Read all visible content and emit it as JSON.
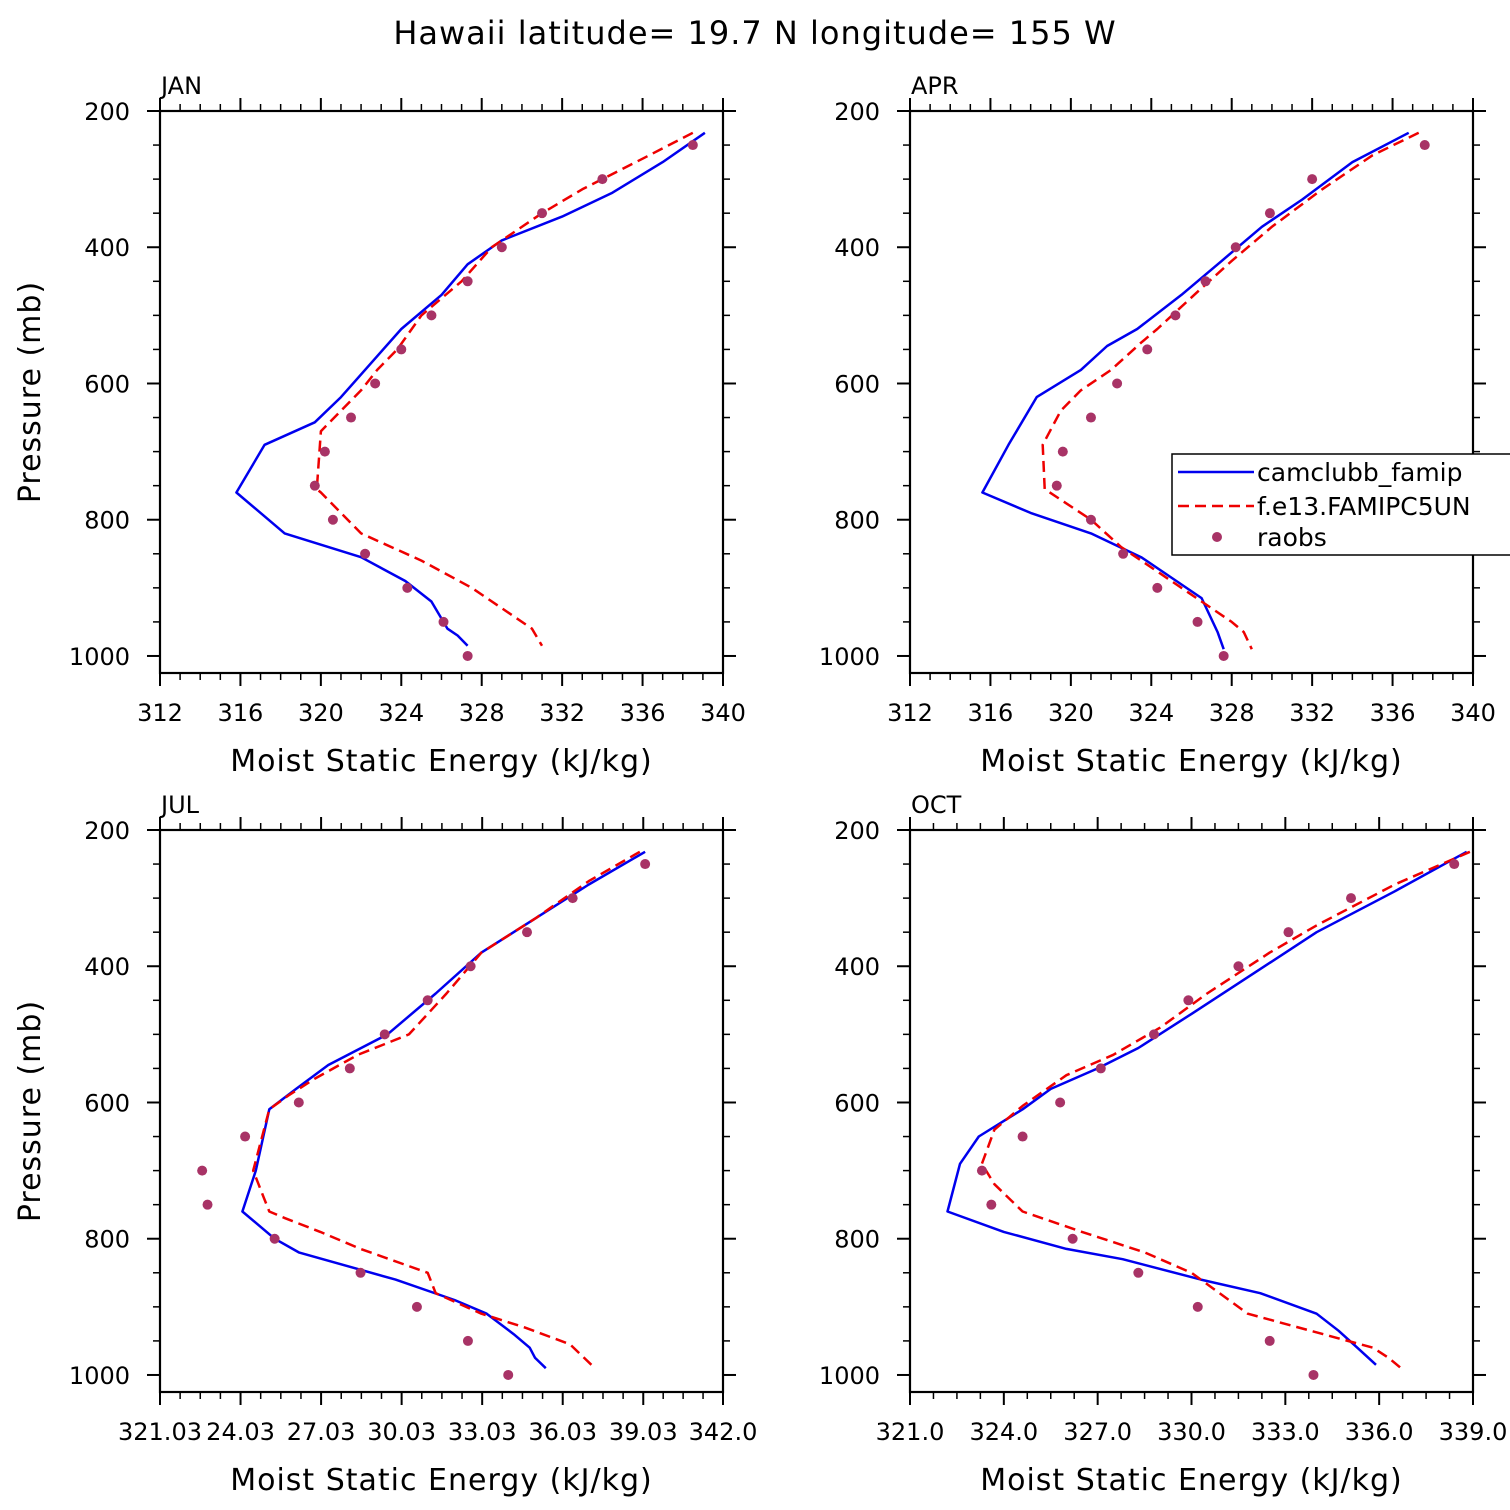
{
  "title": "Hawaii  latitude= 19.7 N longitude= 155 W",
  "colors": {
    "model1": "#0000ee",
    "model2": "#ee0000",
    "obs": "#a83366"
  },
  "legend": {
    "entries": [
      "camclubb_famip",
      "f.e13.FAMIPC5UN",
      "raobs"
    ]
  },
  "chart_data": [
    {
      "type": "line",
      "title": "JAN",
      "xlabel": "Moist Static Energy (kJ/kg)",
      "ylabel": "Pressure (mb)",
      "xlim": [
        312,
        340
      ],
      "ylim": [
        1025,
        200
      ],
      "xticks": [
        312,
        316,
        320,
        324,
        328,
        332,
        336,
        340
      ],
      "xtick_labels": [
        "312",
        "316",
        "320",
        "324",
        "328",
        "332",
        "336",
        "340"
      ],
      "yticks": [
        200,
        400,
        600,
        800,
        1000
      ],
      "ytick_labels": [
        "200",
        "400",
        "600",
        "800",
        "1000"
      ],
      "series": [
        {
          "name": "camclubb_famip",
          "style": "solid",
          "x": [
            339.1,
            337,
            334.5,
            332,
            329,
            327.3,
            326,
            324,
            322.8,
            321,
            319.7,
            317.2,
            315.8,
            318.2,
            322,
            324.2,
            325.5,
            326.3,
            326.8,
            327.3
          ],
          "y": [
            232,
            275,
            320,
            355,
            390,
            425,
            470,
            520,
            560,
            620,
            657,
            690,
            760,
            820,
            855,
            890,
            920,
            960,
            970,
            985
          ]
        },
        {
          "name": "f.e13.FAMIPC5UN",
          "style": "dashed",
          "x": [
            338.5,
            336,
            333,
            331,
            328.5,
            327,
            325,
            323.8,
            322.8,
            322,
            320,
            319.8,
            320,
            322,
            325,
            327.5,
            330.5,
            331
          ],
          "y": [
            232,
            270,
            315,
            350,
            400,
            450,
            500,
            550,
            580,
            610,
            670,
            755,
            760,
            820,
            860,
            900,
            960,
            985
          ]
        },
        {
          "name": "raobs",
          "style": "points",
          "x": [
            338.5,
            334,
            331,
            329,
            327.3,
            325.5,
            324,
            322.7,
            321.5,
            320.2,
            319.7,
            320.6,
            322.2,
            324.3,
            326.1,
            327.3
          ],
          "y": [
            250,
            300,
            350,
            400,
            450,
            500,
            550,
            600,
            650,
            700,
            750,
            800,
            850,
            900,
            950,
            1000
          ]
        }
      ]
    },
    {
      "type": "line",
      "title": "APR",
      "xlabel": "Moist Static Energy (kJ/kg)",
      "ylabel": "",
      "xlim": [
        312,
        340
      ],
      "ylim": [
        1025,
        200
      ],
      "xticks": [
        312,
        316,
        320,
        324,
        328,
        332,
        336,
        340
      ],
      "xtick_labels": [
        "312",
        "316",
        "320",
        "324",
        "328",
        "332",
        "336",
        "340"
      ],
      "yticks": [
        200,
        400,
        600,
        800,
        1000
      ],
      "ytick_labels": [
        "200",
        "400",
        "600",
        "800",
        "1000"
      ],
      "series": [
        {
          "name": "camclubb_famip",
          "style": "solid",
          "x": [
            336.8,
            334,
            331.5,
            329.5,
            327.5,
            325.5,
            323.3,
            321.8,
            320.5,
            318.3,
            316.9,
            315.6,
            318,
            321,
            323.5,
            325,
            326.5,
            327.3,
            327.6
          ],
          "y": [
            232,
            275,
            330,
            370,
            420,
            470,
            520,
            545,
            580,
            620,
            690,
            760,
            790,
            820,
            855,
            885,
            915,
            965,
            990
          ]
        },
        {
          "name": "f.e13.FAMIPC5UN",
          "style": "dashed",
          "x": [
            337.3,
            335,
            332.5,
            330,
            328,
            326.5,
            324.3,
            323.5,
            322,
            320.5,
            319.5,
            318.6,
            318.7,
            321,
            322.5,
            324.5,
            326.5,
            328,
            328.6,
            329
          ],
          "y": [
            232,
            265,
            315,
            370,
            420,
            460,
            520,
            540,
            580,
            610,
            640,
            690,
            755,
            800,
            840,
            880,
            920,
            950,
            965,
            990
          ]
        },
        {
          "name": "raobs",
          "style": "points",
          "x": [
            337.6,
            332,
            329.9,
            328.2,
            326.7,
            325.2,
            323.8,
            322.3,
            321,
            319.6,
            319.3,
            321,
            322.6,
            324.3,
            326.3,
            327.6
          ],
          "y": [
            250,
            300,
            350,
            400,
            450,
            500,
            550,
            600,
            650,
            700,
            750,
            800,
            850,
            900,
            950,
            1000
          ]
        }
      ]
    },
    {
      "type": "line",
      "title": "JUL",
      "xlabel": "Moist Static Energy (kJ/kg)",
      "ylabel": "Pressure (mb)",
      "xlim": [
        321.03,
        342.0
      ],
      "ylim": [
        1025,
        200
      ],
      "xticks": [
        321.03,
        324.03,
        327.03,
        330.03,
        333.03,
        336.03,
        339.03,
        342.0
      ],
      "xtick_labels": [
        "321.03",
        "24.03",
        "27.03",
        "30.03",
        "33.03",
        "36.03",
        "39.03",
        "342.0"
      ],
      "yticks": [
        200,
        400,
        600,
        800,
        1000
      ],
      "ytick_labels": [
        "200",
        "400",
        "600",
        "800",
        "1000"
      ],
      "series": [
        {
          "name": "camclubb_famip",
          "style": "solid",
          "x": [
            339.1,
            337,
            335,
            333,
            331.3,
            329.5,
            327.3,
            326.1,
            325.1,
            324.6,
            324.1,
            325.3,
            326.2,
            329.8,
            332,
            333.2,
            334.2,
            334.8,
            335,
            335.4
          ],
          "y": [
            232,
            280,
            330,
            380,
            440,
            500,
            545,
            580,
            610,
            700,
            760,
            800,
            820,
            860,
            890,
            910,
            940,
            960,
            975,
            990
          ]
        },
        {
          "name": "f.e13.FAMIPC5UN",
          "style": "dashed",
          "x": [
            338.9,
            337,
            335,
            333,
            331.7,
            330.3,
            328.4,
            326.8,
            325.8,
            325.1,
            324.5,
            324.9,
            325.1,
            325.7,
            327,
            328.5,
            331,
            331.3,
            333,
            334.6,
            336.3,
            337.1
          ],
          "y": [
            232,
            275,
            330,
            380,
            440,
            500,
            530,
            565,
            590,
            610,
            700,
            740,
            760,
            770,
            790,
            815,
            850,
            880,
            910,
            930,
            955,
            985
          ]
        },
        {
          "name": "raobs",
          "style": "points",
          "x": [
            339.1,
            336.4,
            334.7,
            332.6,
            331,
            329.4,
            328.1,
            326.2,
            324.2,
            322.6,
            322.8,
            325.3,
            328.5,
            330.6,
            332.5,
            334
          ],
          "y": [
            250,
            300,
            350,
            400,
            450,
            500,
            550,
            600,
            650,
            700,
            750,
            800,
            850,
            900,
            950,
            1000
          ]
        }
      ]
    },
    {
      "type": "line",
      "title": "OCT",
      "xlabel": "Moist Static Energy (kJ/kg)",
      "ylabel": "",
      "xlim": [
        321.0,
        339.0
      ],
      "ylim": [
        1025,
        200
      ],
      "xticks": [
        321,
        324,
        327,
        330,
        333,
        336,
        339
      ],
      "xtick_labels": [
        "321.0",
        "324.0",
        "327.0",
        "330.0",
        "333.0",
        "336.0",
        "339.0"
      ],
      "yticks": [
        200,
        400,
        600,
        800,
        1000
      ],
      "ytick_labels": [
        "200",
        "400",
        "600",
        "800",
        "1000"
      ],
      "series": [
        {
          "name": "camclubb_famip",
          "style": "solid",
          "x": [
            338.8,
            336.5,
            334,
            332,
            330,
            328.3,
            327,
            325.5,
            324.6,
            323.2,
            322.6,
            322.2,
            324,
            326,
            327.8,
            330.3,
            332.2,
            334,
            334.7,
            335.3,
            335.9
          ],
          "y": [
            232,
            290,
            350,
            410,
            470,
            520,
            550,
            580,
            610,
            650,
            690,
            760,
            790,
            815,
            830,
            860,
            880,
            910,
            935,
            960,
            985
          ]
        },
        {
          "name": "f.e13.FAMIPC5UN",
          "style": "dashed",
          "x": [
            338.9,
            336.5,
            334,
            332.5,
            330.5,
            329,
            327.5,
            326,
            324.6,
            323.7,
            323.3,
            323.7,
            324.6,
            326.5,
            328.5,
            330,
            331.8,
            334.2,
            335.8,
            336.3,
            336.7
          ],
          "y": [
            232,
            280,
            340,
            380,
            440,
            490,
            530,
            560,
            605,
            640,
            690,
            720,
            760,
            790,
            820,
            850,
            910,
            940,
            960,
            975,
            990
          ]
        },
        {
          "name": "raobs",
          "style": "points",
          "x": [
            338.4,
            335.1,
            333.1,
            331.5,
            329.9,
            328.8,
            327.1,
            325.8,
            324.6,
            323.3,
            323.6,
            326.2,
            328.3,
            330.2,
            332.5,
            333.9
          ],
          "y": [
            250,
            300,
            350,
            400,
            450,
            500,
            550,
            600,
            650,
            700,
            750,
            800,
            850,
            900,
            950,
            1000
          ]
        }
      ]
    }
  ]
}
